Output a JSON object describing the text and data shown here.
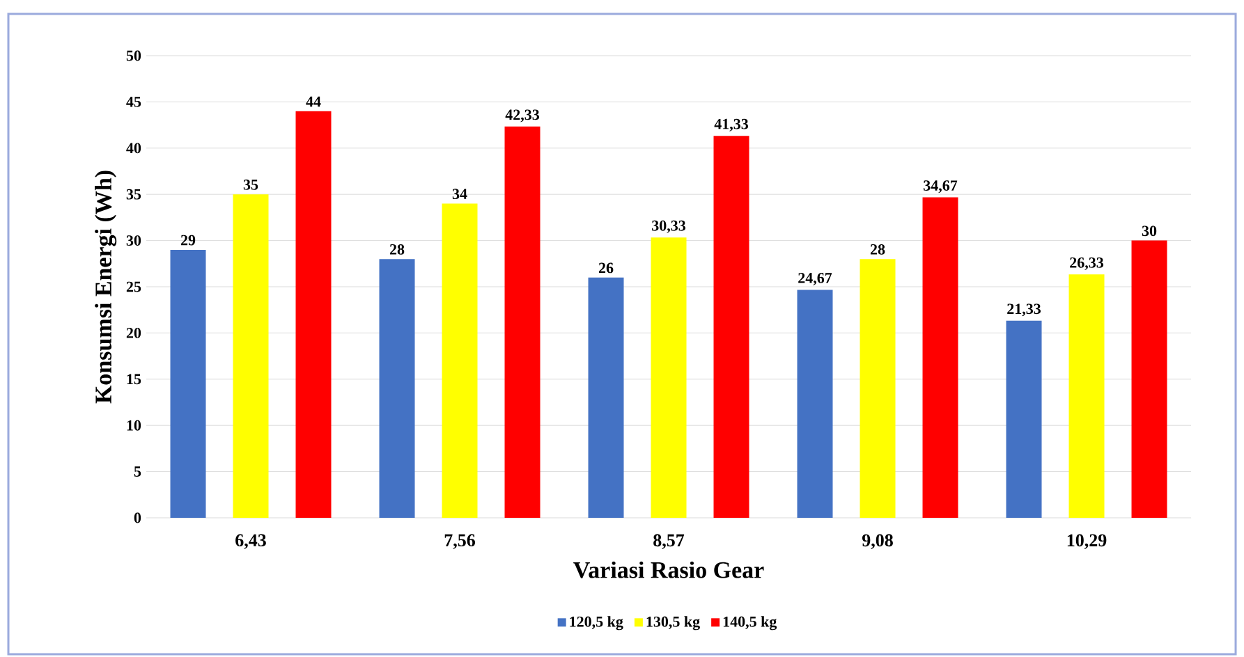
{
  "chart_data": {
    "type": "bar",
    "xlabel": "Variasi Rasio Gear",
    "ylabel": "Konsumsi Energi (Wh)",
    "categories": [
      "6,43",
      "7,56",
      "8,57",
      "9,08",
      "10,29"
    ],
    "series": [
      {
        "name": "120,5 kg",
        "color": "#4472c4",
        "values": [
          29,
          28,
          26,
          24.67,
          21.33
        ],
        "value_labels": [
          "29",
          "28",
          "26",
          "24,67",
          "21,33"
        ]
      },
      {
        "name": "130,5 kg",
        "color": "#ffff00",
        "values": [
          35,
          34,
          30.33,
          28,
          26.33
        ],
        "value_labels": [
          "35",
          "34",
          "30,33",
          "28",
          "26,33"
        ]
      },
      {
        "name": "140,5 kg",
        "color": "#ff0000",
        "values": [
          44,
          42.33,
          41.33,
          34.67,
          30
        ],
        "value_labels": [
          "44",
          "42,33",
          "41,33",
          "34,67",
          "30"
        ]
      }
    ],
    "ylim": [
      0,
      50
    ],
    "yticks": [
      0,
      5,
      10,
      15,
      20,
      25,
      30,
      35,
      40,
      45,
      50
    ],
    "grid": "y",
    "legend": "bottom"
  }
}
